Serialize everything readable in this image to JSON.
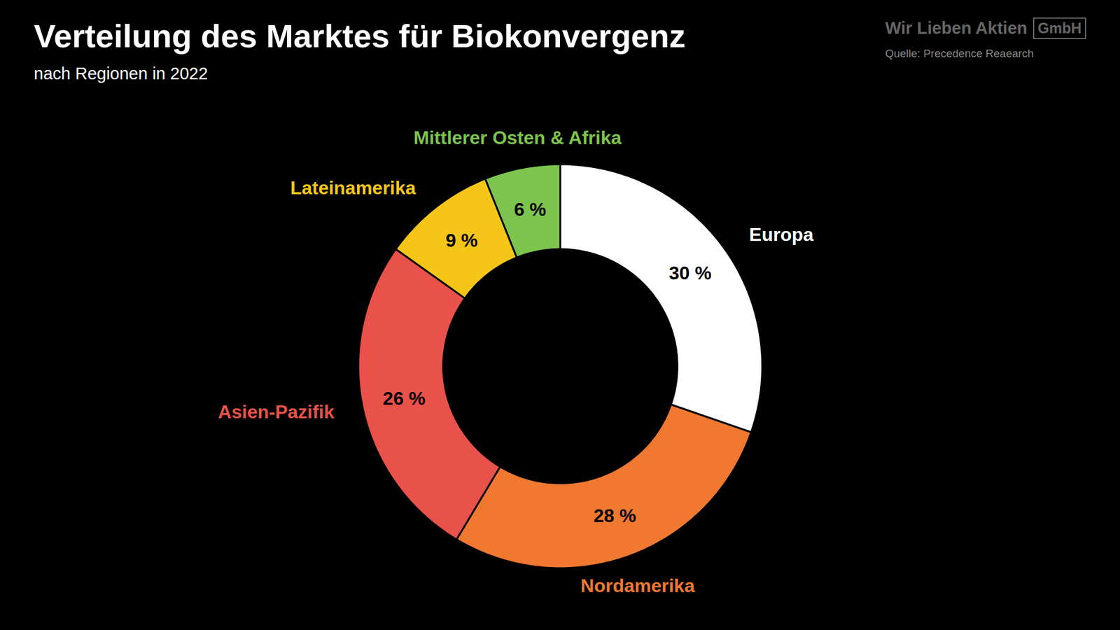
{
  "chart_data": {
    "type": "pie",
    "title": "Verteilung des Marktes für Biokonvergenz",
    "subtitle": "nach Regionen in 2022",
    "annotations": [
      "Quelle: Precedence Reaearch",
      "Wir Lieben Aktien",
      "GmbH"
    ],
    "categories": [
      "Europa",
      "Nordamerika",
      "Asien-Pazifik",
      "Lateinamerika",
      "Mittlerer Osten & Afrika"
    ],
    "values": [
      30,
      28,
      26,
      9,
      6
    ],
    "value_labels": [
      "30 %",
      "28 %",
      "26 %",
      "9 %",
      "6 %"
    ],
    "colors": [
      "#ffffff",
      "#f07830",
      "#e8524a",
      "#f5c518",
      "#7dc44e"
    ],
    "data_labels": true
  }
}
